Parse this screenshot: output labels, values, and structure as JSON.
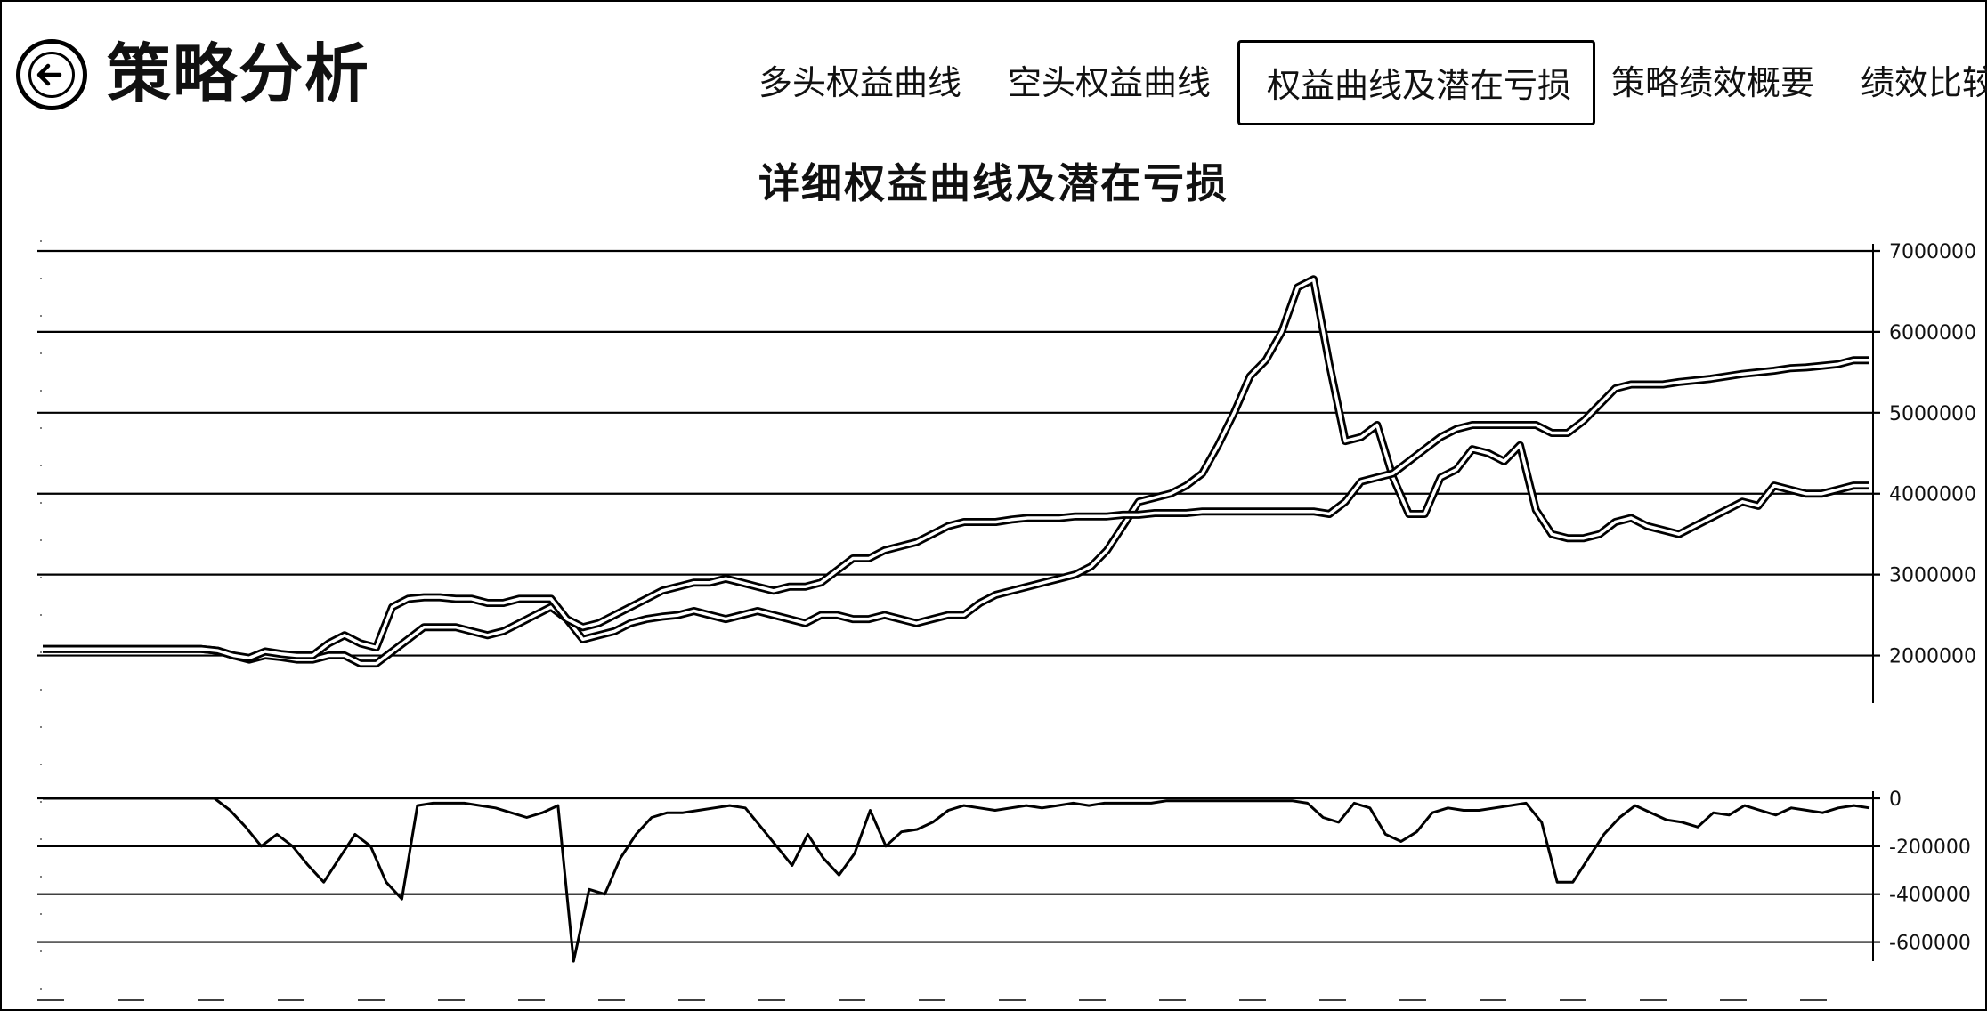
{
  "header": {
    "back_icon": "back-arrow-circle-icon",
    "title": "策略分析"
  },
  "tabs": [
    {
      "label": "多头权益曲线",
      "active": false
    },
    {
      "label": "空头权益曲线",
      "active": false
    },
    {
      "label": "权益曲线及潜在亏损",
      "active": true
    },
    {
      "label": "策略绩效概要",
      "active": false
    },
    {
      "label": "绩效比较",
      "active": false
    }
  ],
  "chart_data": [
    {
      "type": "line",
      "title": "详细权益曲线及潜在亏损",
      "ylim": [
        1500000,
        7000000
      ],
      "yticks": [
        "7000000",
        "6000000",
        "5000000",
        "4000000",
        "3000000",
        "2000000"
      ],
      "ytick_values": [
        7000000,
        6000000,
        5000000,
        4000000,
        3000000,
        2000000
      ],
      "grid": true,
      "series": [
        {
          "values": [
            2080000,
            2080000,
            2080000,
            2080000,
            2080000,
            2080000,
            2080000,
            2080000,
            2080000,
            2080000,
            2080000,
            2060000,
            2000000,
            1950000,
            2000000,
            1980000,
            1950000,
            1950000,
            2000000,
            2000000,
            1900000,
            1900000,
            2050000,
            2200000,
            2350000,
            2350000,
            2350000,
            2300000,
            2250000,
            2300000,
            2400000,
            2500000,
            2600000,
            2450000,
            2200000,
            2250000,
            2300000,
            2400000,
            2450000,
            2480000,
            2500000,
            2550000,
            2500000,
            2450000,
            2500000,
            2550000,
            2500000,
            2450000,
            2400000,
            2500000,
            2500000,
            2450000,
            2450000,
            2500000,
            2450000,
            2400000,
            2450000,
            2500000,
            2500000,
            2650000,
            2750000,
            2800000,
            2850000,
            2900000,
            2950000,
            3000000,
            3100000,
            3300000,
            3600000,
            3900000,
            3950000,
            4000000,
            4100000,
            4250000,
            4600000,
            5000000,
            5450000,
            5650000,
            6000000,
            6550000,
            6650000,
            5600000,
            4650000,
            4700000,
            4850000,
            4200000,
            3750000,
            3750000,
            4200000,
            4300000,
            4550000,
            4500000,
            4400000,
            4600000,
            3800000,
            3500000,
            3450000,
            3450000,
            3500000,
            3650000,
            3700000,
            3600000,
            3550000,
            3500000,
            3600000,
            3700000,
            3800000,
            3900000,
            3850000,
            4100000,
            4050000,
            4000000,
            4000000,
            4050000,
            4100000,
            4100000
          ]
        },
        {
          "values": [
            2080000,
            2080000,
            2080000,
            2080000,
            2080000,
            2080000,
            2080000,
            2080000,
            2080000,
            2080000,
            2080000,
            2060000,
            2000000,
            1970000,
            2050000,
            2020000,
            2000000,
            2000000,
            2150000,
            2250000,
            2150000,
            2100000,
            2600000,
            2700000,
            2720000,
            2720000,
            2700000,
            2700000,
            2650000,
            2650000,
            2700000,
            2700000,
            2700000,
            2450000,
            2350000,
            2400000,
            2500000,
            2600000,
            2700000,
            2800000,
            2850000,
            2900000,
            2900000,
            2950000,
            2900000,
            2850000,
            2800000,
            2850000,
            2850000,
            2900000,
            3050000,
            3200000,
            3200000,
            3300000,
            3350000,
            3400000,
            3500000,
            3600000,
            3650000,
            3650000,
            3650000,
            3680000,
            3700000,
            3700000,
            3700000,
            3720000,
            3720000,
            3720000,
            3740000,
            3740000,
            3760000,
            3760000,
            3760000,
            3780000,
            3780000,
            3780000,
            3780000,
            3780000,
            3780000,
            3780000,
            3780000,
            3750000,
            3900000,
            4150000,
            4200000,
            4250000,
            4400000,
            4550000,
            4700000,
            4800000,
            4850000,
            4850000,
            4850000,
            4850000,
            4850000,
            4750000,
            4750000,
            4900000,
            5100000,
            5300000,
            5350000,
            5350000,
            5350000,
            5380000,
            5400000,
            5420000,
            5450000,
            5480000,
            5500000,
            5520000,
            5550000,
            5560000,
            5580000,
            5600000,
            5650000,
            5650000
          ]
        }
      ]
    },
    {
      "type": "line",
      "ylim": [
        -650000,
        0
      ],
      "yticks": [
        "0",
        "-200000",
        "-400000",
        "-600000"
      ],
      "ytick_values": [
        0,
        -200000,
        -400000,
        -600000
      ],
      "grid": true,
      "series": [
        {
          "values": [
            0,
            0,
            0,
            0,
            0,
            0,
            0,
            0,
            0,
            0,
            0,
            0,
            -50000,
            -120000,
            -200000,
            -150000,
            -200000,
            -280000,
            -350000,
            -250000,
            -150000,
            -200000,
            -350000,
            -420000,
            -30000,
            -20000,
            -20000,
            -20000,
            -30000,
            -40000,
            -60000,
            -80000,
            -60000,
            -30000,
            -680000,
            -380000,
            -400000,
            -250000,
            -150000,
            -80000,
            -60000,
            -60000,
            -50000,
            -40000,
            -30000,
            -40000,
            -120000,
            -200000,
            -280000,
            -150000,
            -250000,
            -320000,
            -230000,
            -50000,
            -200000,
            -140000,
            -130000,
            -100000,
            -50000,
            -30000,
            -40000,
            -50000,
            -40000,
            -30000,
            -40000,
            -30000,
            -20000,
            -30000,
            -20000,
            -20000,
            -20000,
            -20000,
            -10000,
            -10000,
            -10000,
            -10000,
            -10000,
            -10000,
            -10000,
            -10000,
            -10000,
            -20000,
            -80000,
            -100000,
            -20000,
            -40000,
            -150000,
            -180000,
            -140000,
            -60000,
            -40000,
            -50000,
            -50000,
            -40000,
            -30000,
            -20000,
            -100000,
            -350000,
            -350000,
            -250000,
            -150000,
            -80000,
            -30000,
            -60000,
            -90000,
            -100000,
            -120000,
            -60000,
            -70000,
            -30000,
            -50000,
            -70000,
            -40000,
            -50000,
            -60000,
            -40000,
            -30000,
            -40000
          ]
        }
      ]
    }
  ]
}
